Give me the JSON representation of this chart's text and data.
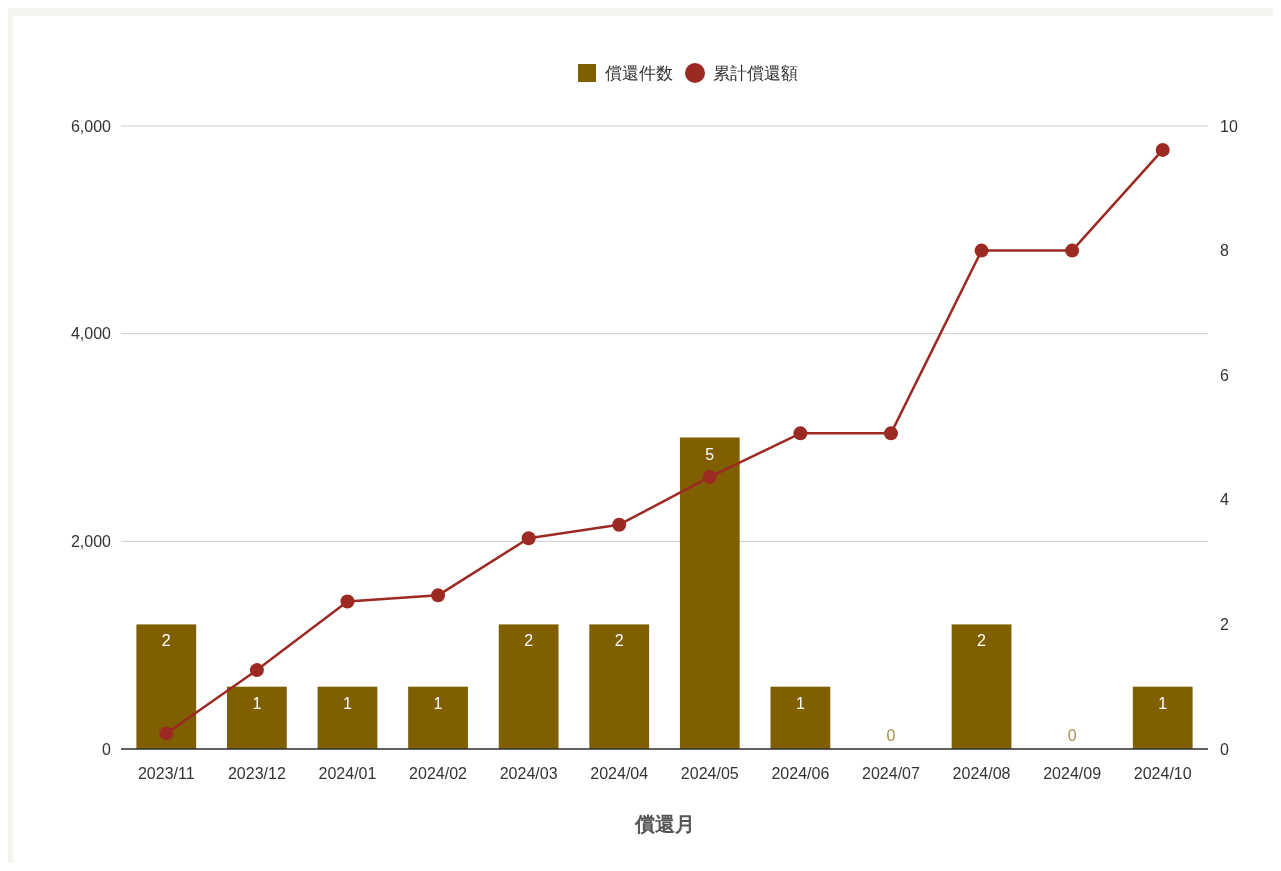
{
  "chart_data": {
    "type": "bar",
    "xlabel": "償還月",
    "categories": [
      "2023/11",
      "2023/12",
      "2024/01",
      "2024/02",
      "2024/03",
      "2024/04",
      "2024/05",
      "2024/06",
      "2024/07",
      "2024/08",
      "2024/09",
      "2024/10"
    ],
    "series": [
      {
        "name": "償還件数",
        "axis": "y2",
        "color": "#7f5f00",
        "values": [
          2,
          1,
          1,
          1,
          2,
          2,
          5,
          1,
          0,
          2,
          0,
          1
        ],
        "value_labels": [
          "2",
          "1",
          "1",
          "1",
          "2",
          "2",
          "5",
          "1",
          "0",
          "2",
          "0",
          "1"
        ]
      },
      {
        "name": "累計償還額",
        "type": "line",
        "axis": "y",
        "color": "#9c2a22",
        "marker": "circle",
        "values": [
          150,
          760,
          1420,
          1480,
          2030,
          2160,
          2620,
          3040,
          3040,
          4800,
          4800,
          5770
        ]
      }
    ],
    "ylim": [
      0,
      6000
    ],
    "yticks": [
      0,
      {
        "value": 2000,
        "label": "2,000"
      },
      {
        "value": 4000,
        "label": "4,000"
      },
      {
        "value": 6000,
        "label": "6,000"
      }
    ],
    "y2lim": [
      0,
      10
    ],
    "y2ticks": [
      0,
      2,
      4,
      6,
      8,
      10
    ],
    "grid": "y",
    "legend": "top"
  }
}
